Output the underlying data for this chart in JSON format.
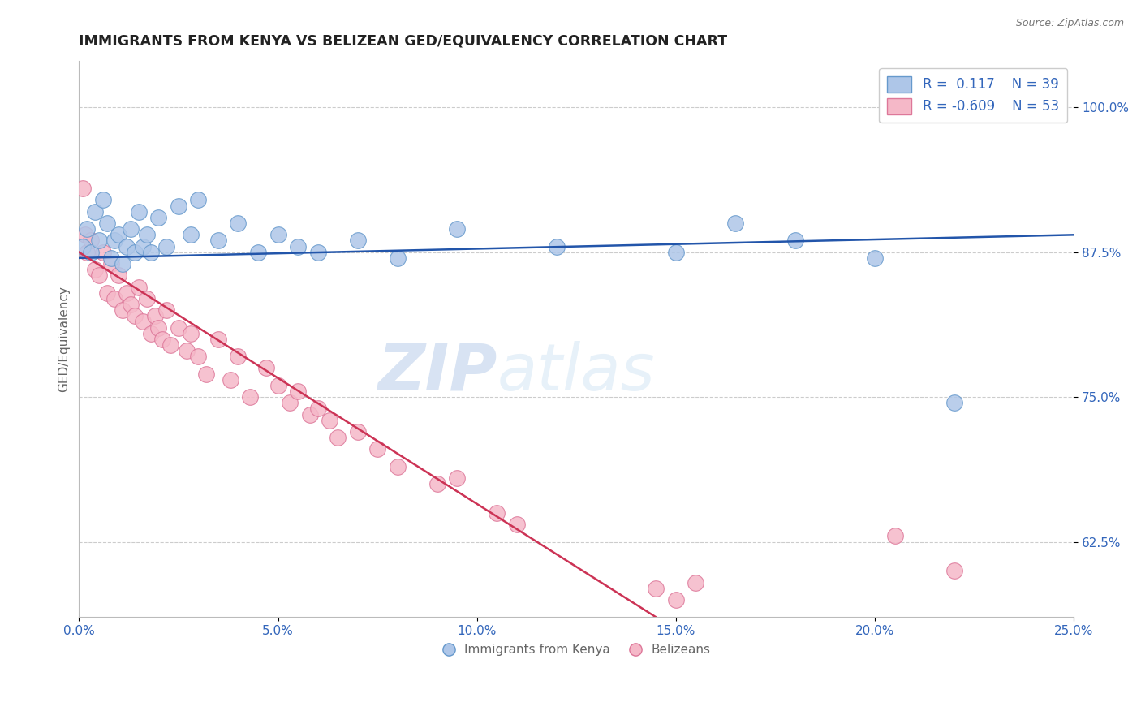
{
  "title": "IMMIGRANTS FROM KENYA VS BELIZEAN GED/EQUIVALENCY CORRELATION CHART",
  "source_text": "Source: ZipAtlas.com",
  "ylabel": "GED/Equivalency",
  "xlim": [
    0.0,
    25.0
  ],
  "ylim": [
    56.0,
    104.0
  ],
  "xticks": [
    0.0,
    5.0,
    10.0,
    15.0,
    20.0,
    25.0
  ],
  "xticklabels": [
    "0.0%",
    "5.0%",
    "10.0%",
    "15.0%",
    "20.0%",
    "25.0%"
  ],
  "yticks": [
    62.5,
    75.0,
    87.5,
    100.0
  ],
  "yticklabels": [
    "62.5%",
    "75.0%",
    "87.5%",
    "100.0%"
  ],
  "legend_labels": [
    "Immigrants from Kenya",
    "Belizeans"
  ],
  "blue_R": 0.117,
  "blue_N": 39,
  "pink_R": -0.609,
  "pink_N": 53,
  "blue_color": "#aec6e8",
  "pink_color": "#f5b8c8",
  "blue_edge": "#6699cc",
  "pink_edge": "#dd7799",
  "blue_line_color": "#2255aa",
  "pink_line_color": "#cc3355",
  "watermark_zip": "ZIP",
  "watermark_atlas": "atlas",
  "background_color": "#ffffff",
  "title_color": "#222222",
  "title_fontsize": 12.5,
  "axis_label_color": "#666666",
  "tick_color": "#3366bb",
  "grid_color": "#cccccc",
  "blue_scatter_x": [
    0.1,
    0.2,
    0.3,
    0.4,
    0.5,
    0.6,
    0.7,
    0.8,
    0.9,
    1.0,
    1.1,
    1.2,
    1.3,
    1.4,
    1.5,
    1.6,
    1.7,
    1.8,
    2.0,
    2.2,
    2.5,
    2.8,
    3.0,
    3.5,
    4.0,
    4.5,
    5.0,
    5.5,
    6.0,
    7.0,
    8.0,
    9.5,
    12.0,
    15.0,
    16.5,
    18.0,
    20.0,
    22.0,
    24.5
  ],
  "blue_scatter_y": [
    88.0,
    89.5,
    87.5,
    91.0,
    88.5,
    92.0,
    90.0,
    87.0,
    88.5,
    89.0,
    86.5,
    88.0,
    89.5,
    87.5,
    91.0,
    88.0,
    89.0,
    87.5,
    90.5,
    88.0,
    91.5,
    89.0,
    92.0,
    88.5,
    90.0,
    87.5,
    89.0,
    88.0,
    87.5,
    88.5,
    87.0,
    89.5,
    88.0,
    87.5,
    90.0,
    88.5,
    87.0,
    74.5,
    100.5
  ],
  "pink_scatter_x": [
    0.1,
    0.15,
    0.2,
    0.3,
    0.4,
    0.5,
    0.6,
    0.7,
    0.8,
    0.9,
    1.0,
    1.1,
    1.2,
    1.3,
    1.4,
    1.5,
    1.6,
    1.7,
    1.8,
    1.9,
    2.0,
    2.1,
    2.2,
    2.3,
    2.5,
    2.7,
    2.8,
    3.0,
    3.2,
    3.5,
    3.8,
    4.0,
    4.3,
    4.7,
    5.0,
    5.3,
    5.5,
    5.8,
    6.0,
    6.3,
    6.5,
    7.0,
    7.5,
    8.0,
    9.0,
    9.5,
    10.5,
    11.0,
    14.5,
    15.0,
    15.5,
    20.5,
    22.0
  ],
  "pink_scatter_y": [
    93.0,
    89.0,
    87.5,
    88.5,
    86.0,
    85.5,
    87.5,
    84.0,
    86.5,
    83.5,
    85.5,
    82.5,
    84.0,
    83.0,
    82.0,
    84.5,
    81.5,
    83.5,
    80.5,
    82.0,
    81.0,
    80.0,
    82.5,
    79.5,
    81.0,
    79.0,
    80.5,
    78.5,
    77.0,
    80.0,
    76.5,
    78.5,
    75.0,
    77.5,
    76.0,
    74.5,
    75.5,
    73.5,
    74.0,
    73.0,
    71.5,
    72.0,
    70.5,
    69.0,
    67.5,
    68.0,
    65.0,
    64.0,
    58.5,
    57.5,
    59.0,
    63.0,
    60.0
  ],
  "blue_line_x0": 0.0,
  "blue_line_y0": 87.0,
  "blue_line_x1": 25.0,
  "blue_line_y1": 89.0,
  "pink_line_x0": 0.0,
  "pink_line_y0": 87.5,
  "pink_line_x1": 14.5,
  "pink_line_y1": 56.0
}
